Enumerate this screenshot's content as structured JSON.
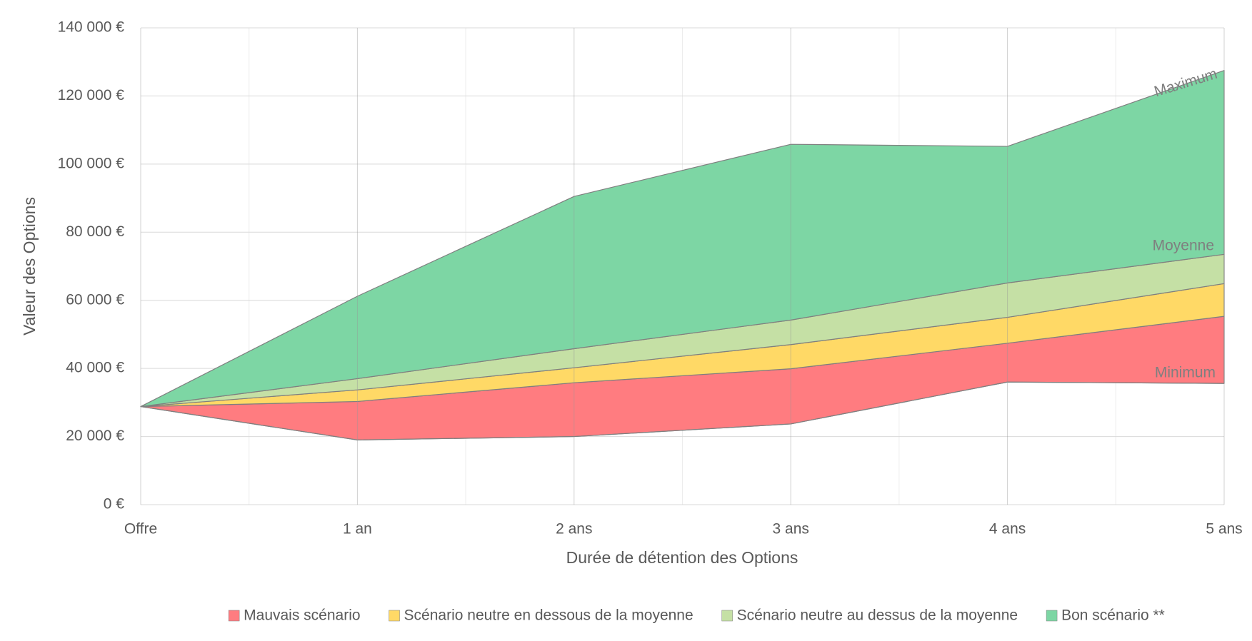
{
  "chart_data": {
    "type": "stacked-area",
    "x_label": "Durée de détention des Options",
    "y_label": "Valeur des Options",
    "categories": [
      "Offre",
      "1 an",
      "2 ans",
      "3 ans",
      "4 ans",
      "5 ans"
    ],
    "base_values": [
      28800,
      19000,
      20000,
      23700,
      36000,
      35600
    ],
    "series": [
      {
        "name": "Mauvais scénario",
        "color": "#ff7c80",
        "values": [
          0,
          11300,
          15800,
          16200,
          11400,
          19700
        ]
      },
      {
        "name": "Scénario neutre en dessous de la moyenne",
        "color": "#ffd966",
        "values": [
          0,
          3400,
          4400,
          7100,
          7600,
          9600
        ]
      },
      {
        "name": "Scénario neutre au dessus de la moyenne",
        "color": "#c5e0a5",
        "values": [
          0,
          3300,
          5600,
          7200,
          10100,
          8600
        ]
      },
      {
        "name": "Bon scénario **",
        "color": "#7dd6a4",
        "values": [
          0,
          24200,
          44700,
          51600,
          40100,
          54000
        ]
      }
    ],
    "annotations": [
      "Maximum",
      "Moyenne",
      "Minimum"
    ],
    "ylim": [
      0,
      140000
    ],
    "yticks": [
      {
        "value": 0,
        "label": "0 €"
      },
      {
        "value": 20000,
        "label": "20 000 €"
      },
      {
        "value": 40000,
        "label": "40 000 €"
      },
      {
        "value": 60000,
        "label": "60 000 €"
      },
      {
        "value": 80000,
        "label": "80 000 €"
      },
      {
        "value": 100000,
        "label": "100 000 €"
      },
      {
        "value": 120000,
        "label": "120 000 €"
      },
      {
        "value": 140000,
        "label": "140 000 €"
      }
    ],
    "grid": true,
    "legend": "bottom"
  }
}
